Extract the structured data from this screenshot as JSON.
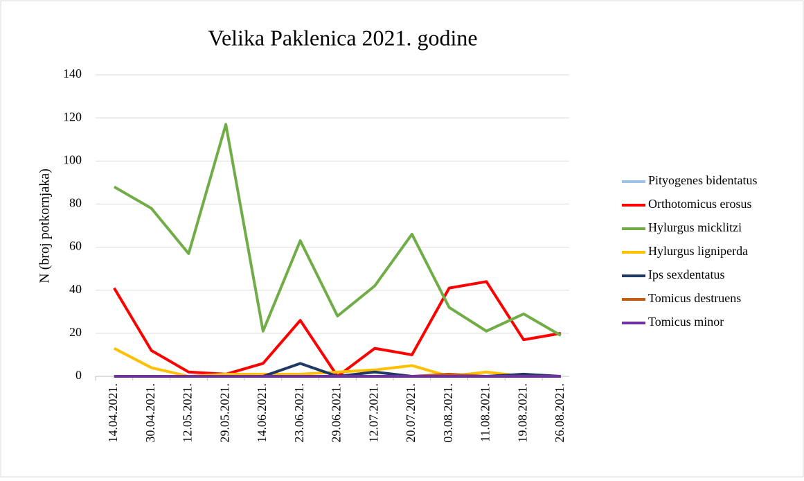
{
  "chart_data": {
    "type": "line",
    "title": "Velika Paklenica 2021. godine",
    "y_label": "N (broj potkornjaka)",
    "categories": [
      "14.04.2021.",
      "30.04.2021.",
      "12.05.2021.",
      "29.05.2021.",
      "14.06.2021.",
      "23.06.2021.",
      "29.06.2021.",
      "12.07.2021.",
      "20.07.2021.",
      "03.08.2021.",
      "11.08.2021.",
      "19.08.2021.",
      "26.08.2021."
    ],
    "series": [
      {
        "name": "Pityogenes bidentatus",
        "color": "#9dc3e6",
        "values": [
          0,
          0,
          0,
          0,
          0,
          0,
          0,
          0,
          0,
          0,
          0,
          0,
          0
        ]
      },
      {
        "name": "Orthotomicus erosus",
        "color": "#ff0000",
        "values": [
          41,
          12,
          2,
          1,
          6,
          26,
          0,
          13,
          10,
          41,
          44,
          17,
          20
        ]
      },
      {
        "name": "Hylurgus micklitzi",
        "color": "#70ad47",
        "values": [
          88,
          78,
          57,
          117,
          21,
          63,
          28,
          42,
          66,
          32,
          21,
          29,
          19
        ]
      },
      {
        "name": "Hylurgus ligniperda",
        "color": "#ffc000",
        "values": [
          13,
          4,
          0,
          1,
          1,
          1,
          2,
          3,
          5,
          0,
          2,
          0,
          0
        ]
      },
      {
        "name": "Ips sexdentatus",
        "color": "#203864",
        "values": [
          0,
          0,
          0,
          0,
          0,
          6,
          0,
          2,
          0,
          0,
          0,
          1,
          0
        ]
      },
      {
        "name": "Tomicus destruens",
        "color": "#c55a11",
        "values": [
          0,
          0,
          0,
          0,
          0,
          0,
          0,
          0,
          0,
          1,
          0,
          0,
          0
        ]
      },
      {
        "name": "Tomicus minor",
        "color": "#7030a0",
        "values": [
          0,
          0,
          0,
          0,
          0,
          0,
          0,
          0,
          0,
          0,
          0,
          0,
          0
        ]
      }
    ],
    "ylim": [
      0,
      140
    ],
    "yticks": [
      0,
      20,
      40,
      60,
      80,
      100,
      120,
      140
    ],
    "grid": true,
    "legend": "right"
  }
}
